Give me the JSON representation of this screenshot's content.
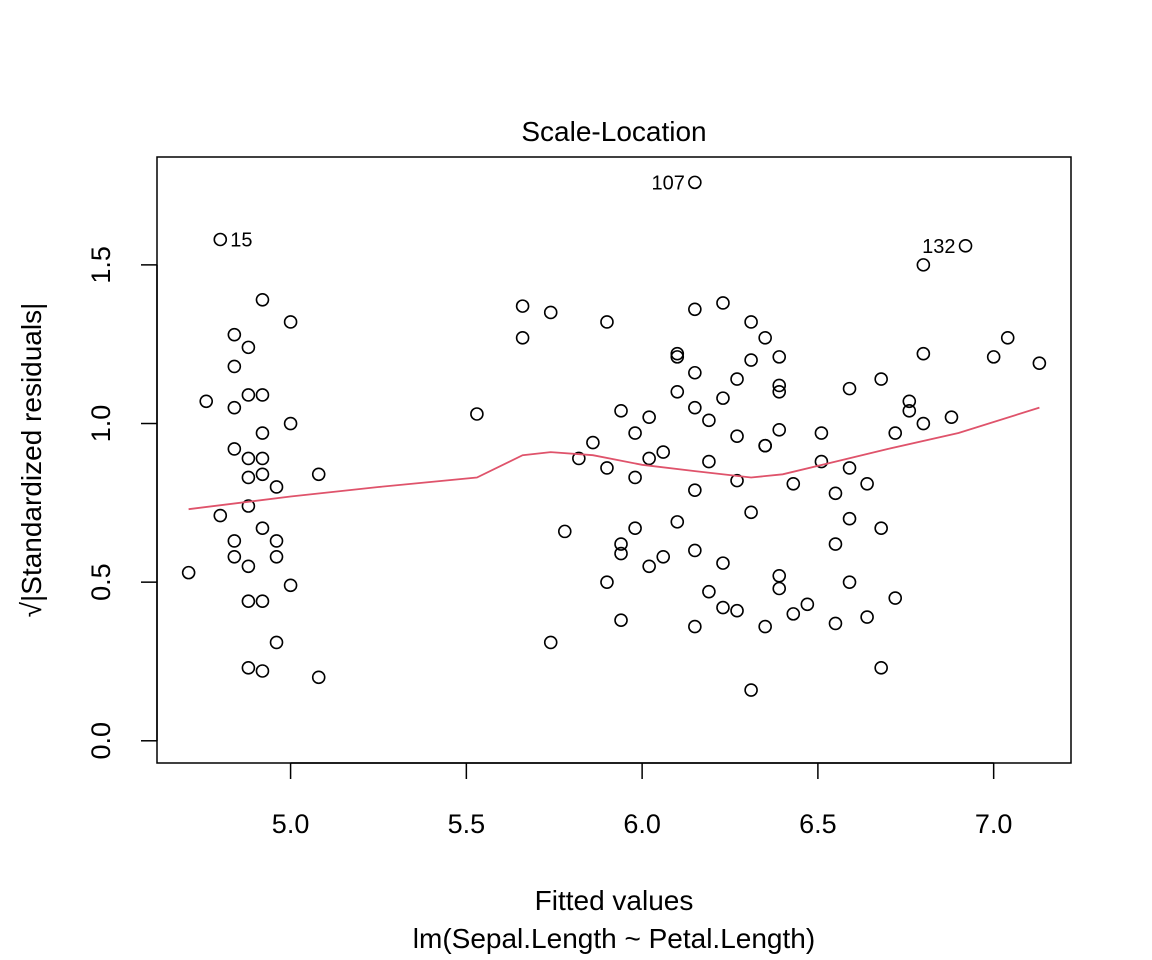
{
  "chart_data": {
    "type": "scatter",
    "title": "Scale-Location",
    "xlabel": "Fitted values",
    "subtitle": "lm(Sepal.Length ~ Petal.Length)",
    "ylabel": "√|Standardized residuals|",
    "xlim": [
      4.62,
      7.22
    ],
    "ylim": [
      -0.07,
      1.84
    ],
    "xticks": [
      5.0,
      5.5,
      6.0,
      6.5,
      7.0
    ],
    "xtick_labels": [
      "5.0",
      "5.5",
      "6.0",
      "6.5",
      "7.0"
    ],
    "yticks": [
      0.0,
      0.5,
      1.0,
      1.5
    ],
    "ytick_labels": [
      "0.0",
      "0.5",
      "1.0",
      "1.5"
    ],
    "grid": false,
    "points": [
      [
        4.71,
        0.53
      ],
      [
        4.76,
        1.07
      ],
      [
        4.8,
        0.71
      ],
      [
        4.8,
        1.58
      ],
      [
        4.84,
        1.28
      ],
      [
        4.84,
        1.18
      ],
      [
        4.84,
        1.05
      ],
      [
        4.84,
        0.92
      ],
      [
        4.84,
        0.63
      ],
      [
        4.84,
        0.58
      ],
      [
        4.88,
        1.24
      ],
      [
        4.88,
        1.09
      ],
      [
        4.88,
        0.89
      ],
      [
        4.88,
        0.83
      ],
      [
        4.88,
        0.74
      ],
      [
        4.88,
        0.55
      ],
      [
        4.88,
        0.44
      ],
      [
        4.88,
        0.23
      ],
      [
        4.92,
        1.39
      ],
      [
        4.92,
        1.09
      ],
      [
        4.92,
        0.97
      ],
      [
        4.92,
        0.89
      ],
      [
        4.92,
        0.84
      ],
      [
        4.92,
        0.67
      ],
      [
        4.92,
        0.44
      ],
      [
        4.92,
        0.22
      ],
      [
        4.96,
        0.8
      ],
      [
        4.96,
        0.63
      ],
      [
        4.96,
        0.58
      ],
      [
        4.96,
        0.31
      ],
      [
        5.0,
        1.32
      ],
      [
        5.0,
        1.0
      ],
      [
        5.0,
        0.49
      ],
      [
        5.08,
        0.84
      ],
      [
        5.08,
        0.2
      ],
      [
        5.53,
        1.03
      ],
      [
        5.66,
        1.37
      ],
      [
        5.66,
        1.27
      ],
      [
        5.74,
        1.35
      ],
      [
        5.74,
        0.31
      ],
      [
        5.78,
        0.66
      ],
      [
        5.82,
        0.89
      ],
      [
        5.86,
        0.94
      ],
      [
        5.9,
        1.32
      ],
      [
        5.9,
        0.86
      ],
      [
        5.9,
        0.5
      ],
      [
        5.94,
        1.04
      ],
      [
        5.94,
        0.62
      ],
      [
        5.94,
        0.59
      ],
      [
        5.94,
        0.38
      ],
      [
        5.98,
        0.97
      ],
      [
        5.98,
        0.83
      ],
      [
        5.98,
        0.67
      ],
      [
        6.02,
        1.02
      ],
      [
        6.02,
        0.89
      ],
      [
        6.02,
        0.55
      ],
      [
        6.06,
        0.91
      ],
      [
        6.06,
        0.58
      ],
      [
        6.1,
        1.22
      ],
      [
        6.1,
        1.21
      ],
      [
        6.1,
        1.1
      ],
      [
        6.1,
        0.69
      ],
      [
        6.15,
        1.76
      ],
      [
        6.15,
        1.36
      ],
      [
        6.15,
        1.16
      ],
      [
        6.15,
        1.05
      ],
      [
        6.15,
        0.79
      ],
      [
        6.15,
        0.6
      ],
      [
        6.15,
        0.36
      ],
      [
        6.19,
        1.01
      ],
      [
        6.19,
        0.88
      ],
      [
        6.19,
        0.47
      ],
      [
        6.23,
        1.38
      ],
      [
        6.23,
        1.08
      ],
      [
        6.23,
        0.56
      ],
      [
        6.23,
        0.42
      ],
      [
        6.27,
        1.14
      ],
      [
        6.27,
        0.96
      ],
      [
        6.27,
        0.82
      ],
      [
        6.27,
        0.41
      ],
      [
        6.31,
        1.32
      ],
      [
        6.31,
        1.2
      ],
      [
        6.31,
        0.72
      ],
      [
        6.31,
        0.16
      ],
      [
        6.35,
        1.27
      ],
      [
        6.35,
        0.93
      ],
      [
        6.35,
        0.93
      ],
      [
        6.35,
        0.36
      ],
      [
        6.39,
        1.21
      ],
      [
        6.39,
        1.12
      ],
      [
        6.39,
        1.1
      ],
      [
        6.39,
        0.98
      ],
      [
        6.39,
        0.52
      ],
      [
        6.39,
        0.48
      ],
      [
        6.43,
        0.81
      ],
      [
        6.43,
        0.4
      ],
      [
        6.47,
        0.43
      ],
      [
        6.51,
        0.97
      ],
      [
        6.51,
        0.88
      ],
      [
        6.55,
        0.78
      ],
      [
        6.55,
        0.62
      ],
      [
        6.55,
        0.37
      ],
      [
        6.59,
        1.11
      ],
      [
        6.59,
        0.86
      ],
      [
        6.59,
        0.7
      ],
      [
        6.59,
        0.5
      ],
      [
        6.64,
        0.81
      ],
      [
        6.64,
        0.39
      ],
      [
        6.68,
        1.14
      ],
      [
        6.68,
        0.67
      ],
      [
        6.68,
        0.23
      ],
      [
        6.72,
        0.97
      ],
      [
        6.72,
        0.45
      ],
      [
        6.76,
        1.07
      ],
      [
        6.76,
        1.04
      ],
      [
        6.8,
        1.5
      ],
      [
        6.8,
        1.22
      ],
      [
        6.8,
        1.0
      ],
      [
        6.88,
        1.02
      ],
      [
        6.92,
        1.56
      ],
      [
        7.0,
        1.21
      ],
      [
        7.04,
        1.27
      ],
      [
        7.13,
        1.19
      ]
    ],
    "smoother": {
      "name": "lowess",
      "color": "#DF536B",
      "x": [
        4.71,
        5.0,
        5.25,
        5.53,
        5.66,
        5.74,
        5.86,
        6.0,
        6.15,
        6.31,
        6.4,
        6.55,
        6.7,
        6.9,
        7.13
      ],
      "y": [
        0.73,
        0.77,
        0.8,
        0.83,
        0.9,
        0.91,
        0.9,
        0.87,
        0.85,
        0.83,
        0.84,
        0.88,
        0.92,
        0.97,
        1.05
      ]
    },
    "annotations": [
      {
        "label": "15",
        "x": 4.8,
        "y": 1.58,
        "side": "right"
      },
      {
        "label": "107",
        "x": 6.15,
        "y": 1.76,
        "side": "left"
      },
      {
        "label": "132",
        "x": 6.92,
        "y": 1.56,
        "side": "left"
      }
    ],
    "colors": {
      "points": "#000000",
      "smoother": "#DF536B",
      "axes": "#000000"
    }
  }
}
